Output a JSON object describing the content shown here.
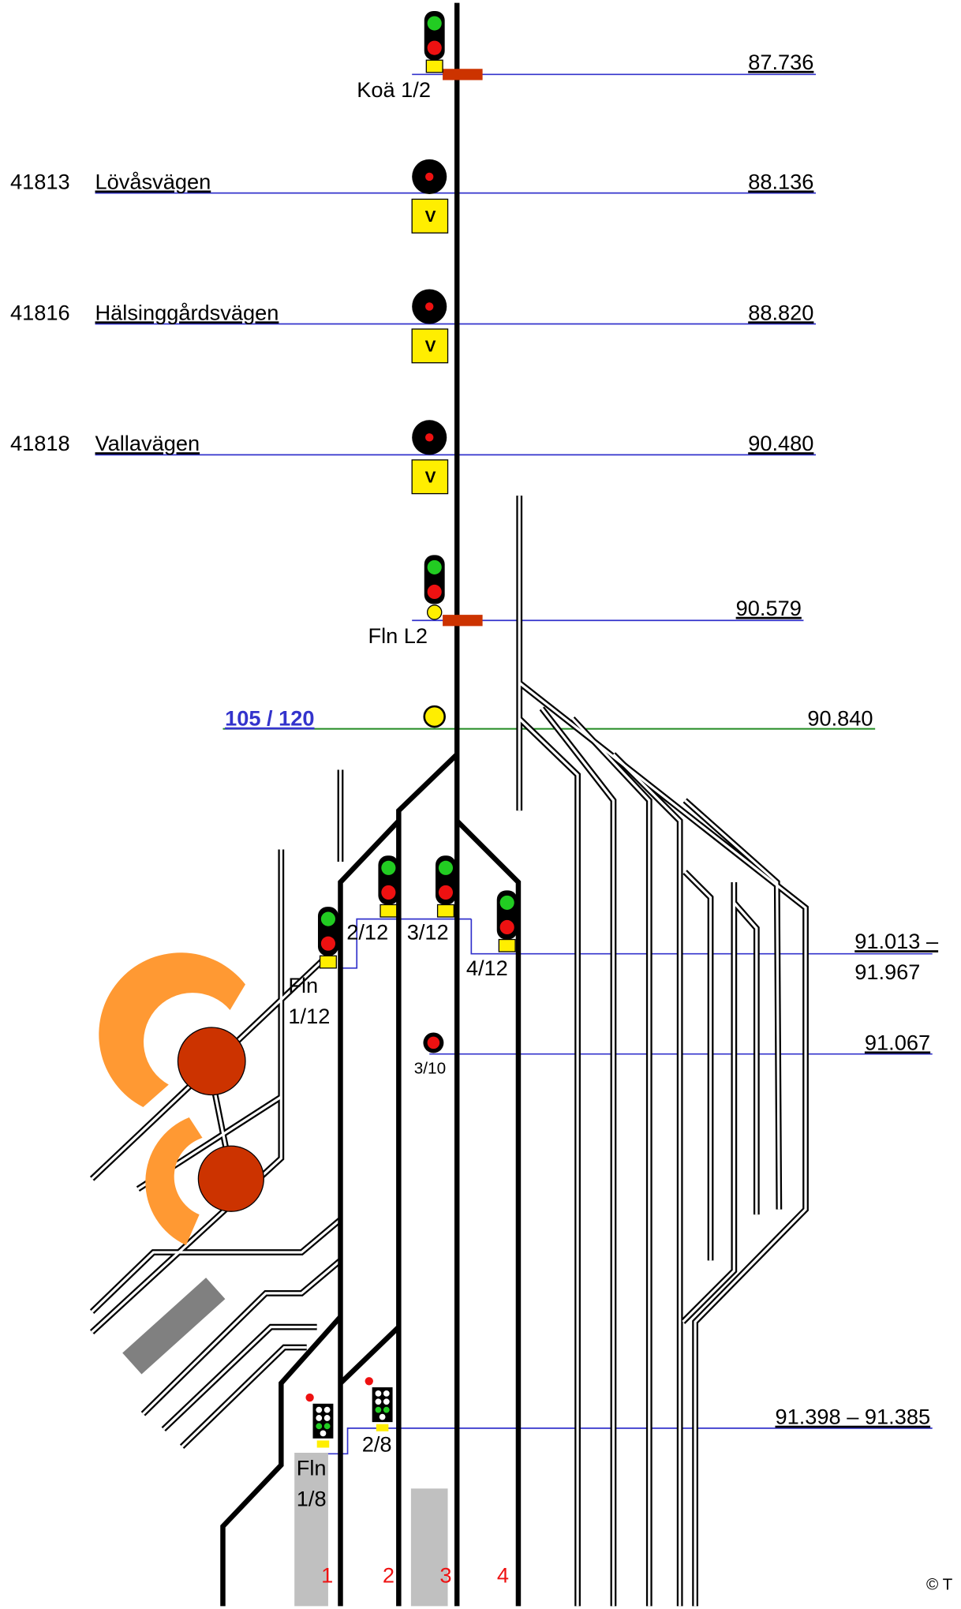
{
  "markers": [
    {
      "label": "Koä 1/2",
      "km": "87.736"
    },
    {
      "label": "Fln L2",
      "km": "90.579"
    }
  ],
  "crossings": [
    {
      "id": "41813",
      "name": "Lövåsvägen",
      "km": "88.136",
      "sign": "V"
    },
    {
      "id": "41816",
      "name": "Hälsinggårdsvägen",
      "km": "88.820",
      "sign": "V"
    },
    {
      "id": "41818",
      "name": "Vallavägen",
      "km": "90.480",
      "sign": "V"
    }
  ],
  "speed": {
    "label": "105 / 120",
    "km": "90.840"
  },
  "signals": {
    "fln_1_12": [
      "Fln",
      "1/12"
    ],
    "s2_12": "2/12",
    "s3_12": "3/12",
    "s4_12": "4/12",
    "s3_10": "3/10",
    "km_4_12": [
      "91.013 –",
      "91.967"
    ],
    "km_3_10": "91.067",
    "fln_1_8": [
      "Fln",
      "1/8"
    ],
    "s2_8": "2/8",
    "km_8": "91.398 – 91.385"
  },
  "tracks": [
    "1",
    "2",
    "3",
    "4"
  ],
  "copyright": "© T"
}
